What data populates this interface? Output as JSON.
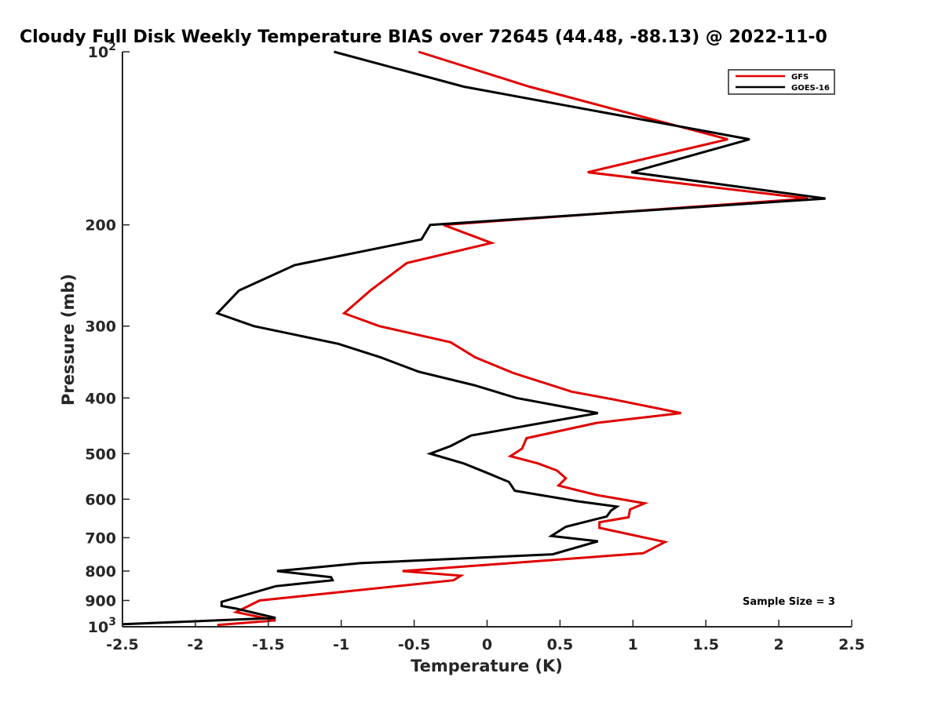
{
  "chart_data": {
    "type": "line",
    "title": "Cloudy Full Disk Weekly Temperature BIAS over 72645 (44.48, -88.13) @ 2022-11-0",
    "xlabel": "Temperature (K)",
    "ylabel": "Pressure (mb)",
    "xlim": [
      -2.5,
      2.5
    ],
    "ylim": [
      100,
      1000
    ],
    "y_scale": "log",
    "y_reversed": true,
    "grid": false,
    "legend_position": "top-right",
    "x_ticks": [
      -2.5,
      -2,
      -1.5,
      -1,
      -0.5,
      0,
      0.5,
      1,
      1.5,
      2,
      2.5
    ],
    "x_tick_labels": [
      "-2.5",
      "-2",
      "-1.5",
      "-1",
      "-0.5",
      "0",
      "0.5",
      "1",
      "1.5",
      "2",
      "2.5"
    ],
    "y_ticks": [
      {
        "value": 100,
        "base": "10",
        "exp": "2"
      },
      {
        "value": 200,
        "label": "200"
      },
      {
        "value": 300,
        "label": "300"
      },
      {
        "value": 400,
        "label": "400"
      },
      {
        "value": 500,
        "label": "500"
      },
      {
        "value": 600,
        "label": "600"
      },
      {
        "value": 700,
        "label": "700"
      },
      {
        "value": 800,
        "label": "800"
      },
      {
        "value": 900,
        "label": "900"
      },
      {
        "value": 1000,
        "base": "10",
        "exp": "3"
      }
    ],
    "annotation": "Sample Size = 3",
    "series": [
      {
        "name": "GFS",
        "color": "#e00000",
        "points": [
          [
            -0.47,
            100
          ],
          [
            0.29,
            115
          ],
          [
            1.65,
            142
          ],
          [
            0.69,
            162
          ],
          [
            2.2,
            180
          ],
          [
            -0.3,
            200
          ],
          [
            0.03,
            215
          ],
          [
            -0.55,
            233
          ],
          [
            -0.8,
            260
          ],
          [
            -0.98,
            285
          ],
          [
            -0.74,
            300
          ],
          [
            -0.25,
            320
          ],
          [
            -0.08,
            340
          ],
          [
            0.18,
            362
          ],
          [
            0.58,
            390
          ],
          [
            0.88,
            403
          ],
          [
            1.33,
            425
          ],
          [
            0.75,
            442
          ],
          [
            0.27,
            470
          ],
          [
            0.24,
            490
          ],
          [
            0.16,
            505
          ],
          [
            0.35,
            520
          ],
          [
            0.48,
            535
          ],
          [
            0.54,
            552
          ],
          [
            0.49,
            568
          ],
          [
            0.75,
            590
          ],
          [
            1.08,
            610
          ],
          [
            0.98,
            625
          ],
          [
            0.97,
            645
          ],
          [
            0.77,
            658
          ],
          [
            0.77,
            673
          ],
          [
            1.22,
            712
          ],
          [
            1.07,
            745
          ],
          [
            -0.58,
            800
          ],
          [
            -0.18,
            815
          ],
          [
            -0.23,
            830
          ],
          [
            -1.56,
            900
          ],
          [
            -1.72,
            943
          ],
          [
            -1.45,
            975
          ],
          [
            -1.85,
            993
          ]
        ]
      },
      {
        "name": "GOES-16",
        "color": "#000000",
        "points": [
          [
            -1.05,
            100
          ],
          [
            -0.16,
            115
          ],
          [
            1.8,
            142
          ],
          [
            0.99,
            162
          ],
          [
            2.32,
            180
          ],
          [
            -0.39,
            200
          ],
          [
            -0.45,
            212
          ],
          [
            -1.32,
            235
          ],
          [
            -1.7,
            260
          ],
          [
            -1.85,
            285
          ],
          [
            -1.6,
            300
          ],
          [
            -1.02,
            322
          ],
          [
            -0.73,
            340
          ],
          [
            -0.47,
            360
          ],
          [
            -0.09,
            380
          ],
          [
            0.2,
            400
          ],
          [
            0.76,
            425
          ],
          [
            -0.11,
            465
          ],
          [
            -0.25,
            485
          ],
          [
            -0.39,
            500
          ],
          [
            -0.16,
            520
          ],
          [
            0.0,
            540
          ],
          [
            0.15,
            560
          ],
          [
            0.19,
            580
          ],
          [
            0.62,
            605
          ],
          [
            0.89,
            618
          ],
          [
            0.85,
            628
          ],
          [
            0.82,
            643
          ],
          [
            0.54,
            670
          ],
          [
            0.44,
            695
          ],
          [
            0.76,
            710
          ],
          [
            0.45,
            748
          ],
          [
            -0.87,
            775
          ],
          [
            -1.44,
            800
          ],
          [
            -1.07,
            820
          ],
          [
            -1.06,
            830
          ],
          [
            -1.45,
            850
          ],
          [
            -1.82,
            905
          ],
          [
            -1.82,
            920
          ],
          [
            -1.72,
            930
          ],
          [
            -1.45,
            965
          ],
          [
            -2.5,
            990
          ]
        ]
      }
    ]
  }
}
